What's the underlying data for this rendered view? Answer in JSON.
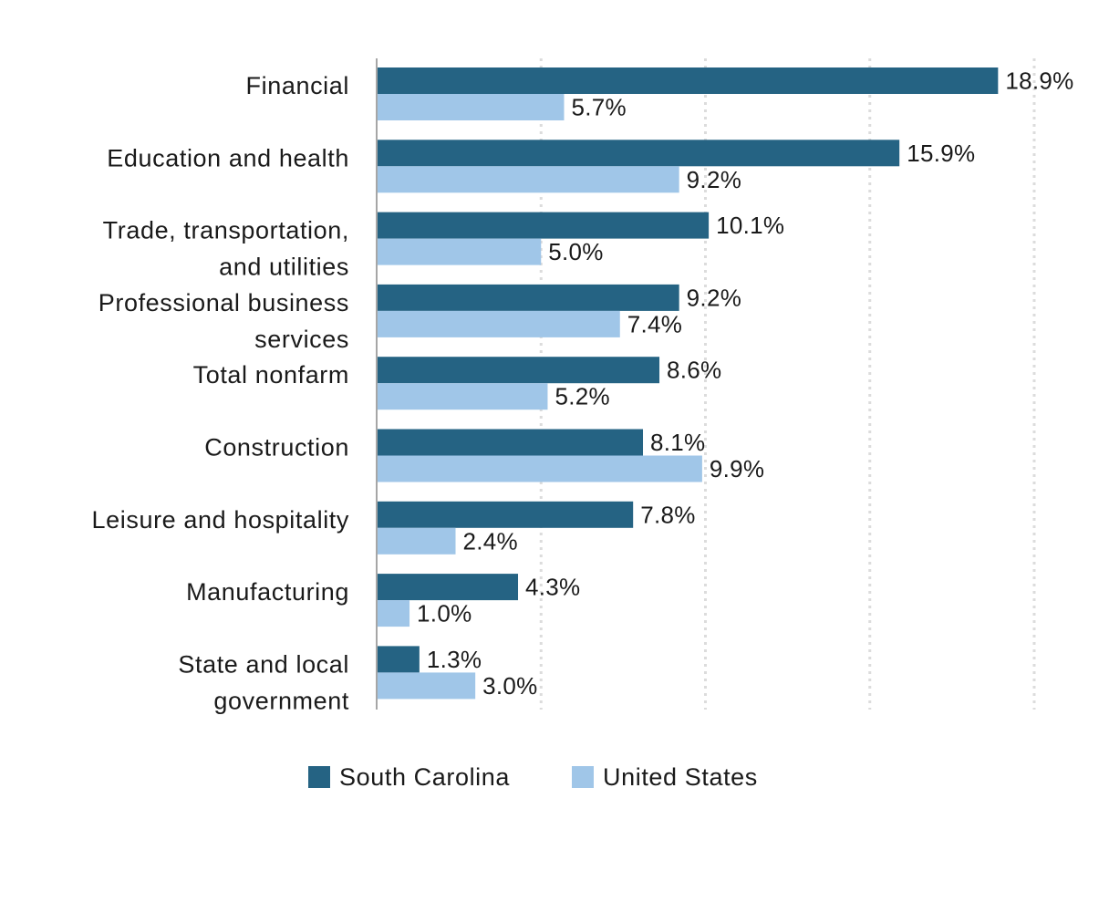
{
  "chart_data": {
    "type": "bar",
    "orientation": "horizontal",
    "title": "",
    "xlabel": "",
    "ylabel": "",
    "xlim": [
      0,
      20
    ],
    "grid": true,
    "legend_position": "bottom",
    "categories": [
      [
        "Financial"
      ],
      [
        "Education and health"
      ],
      [
        "Trade, transportation,",
        "and utilities"
      ],
      [
        "Professional business",
        "services"
      ],
      [
        "Total nonfarm"
      ],
      [
        "Construction"
      ],
      [
        "Leisure and hospitality"
      ],
      [
        "Manufacturing"
      ],
      [
        "State and local",
        "government"
      ]
    ],
    "series": [
      {
        "name": "South Carolina",
        "color": "#256383",
        "values": [
          18.9,
          15.9,
          10.1,
          9.2,
          8.6,
          8.1,
          7.8,
          4.3,
          1.3
        ],
        "labels": [
          "18.9%",
          "15.9%",
          "10.1%",
          "9.2%",
          "8.6%",
          "8.1%",
          "7.8%",
          "4.3%",
          "1.3%"
        ]
      },
      {
        "name": "United States",
        "color": "#a0c6e8",
        "values": [
          5.7,
          9.2,
          5.0,
          7.4,
          5.2,
          9.9,
          2.4,
          1.0,
          3.0
        ],
        "labels": [
          "5.7%",
          "9.2%",
          "5.0%",
          "7.4%",
          "5.2%",
          "9.9%",
          "2.4%",
          "1.0%",
          "3.0%"
        ]
      }
    ]
  }
}
